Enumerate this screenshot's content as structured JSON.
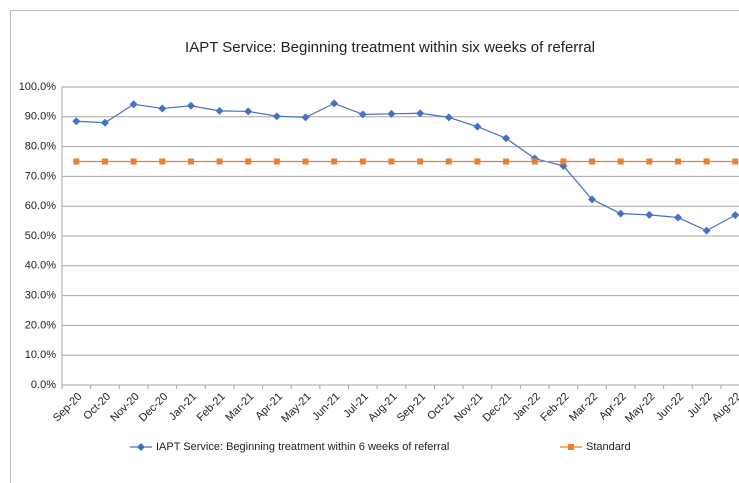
{
  "chart_data": {
    "type": "line",
    "title": "IAPT Service: Beginning treatment within six weeks of referral",
    "categories": [
      "Sep-20",
      "Oct-20",
      "Nov-20",
      "Dec-20",
      "Jan-21",
      "Feb-21",
      "Mar-21",
      "Apr-21",
      "May-21",
      "Jun-21",
      "Jul-21",
      "Aug-21",
      "Sep-21",
      "Oct-21",
      "Nov-21",
      "Dec-21",
      "Jan-22",
      "Feb-22",
      "Mar-22",
      "Apr-22",
      "May-22",
      "Jun-22",
      "Jul-22",
      "Aug-22"
    ],
    "series": [
      {
        "name": "IAPT Service: Beginning treatment within 6 weeks of referral",
        "color": "#4472c4",
        "marker": "diamond",
        "values": [
          88.5,
          88.0,
          94.2,
          92.8,
          93.7,
          92.0,
          91.8,
          90.2,
          89.8,
          94.5,
          90.8,
          91.0,
          91.2,
          89.8,
          86.7,
          82.8,
          76.0,
          73.5,
          62.3,
          57.5,
          57.1,
          56.2,
          51.8,
          57.0
        ]
      },
      {
        "name": "Standard",
        "color": "#ed7d31",
        "marker": "square",
        "values": [
          75,
          75,
          75,
          75,
          75,
          75,
          75,
          75,
          75,
          75,
          75,
          75,
          75,
          75,
          75,
          75,
          75,
          75,
          75,
          75,
          75,
          75,
          75,
          75
        ]
      }
    ],
    "ylim": [
      0,
      100
    ],
    "yticks": [
      {
        "value": 0,
        "label": "0.0%"
      },
      {
        "value": 10,
        "label": "10.0%"
      },
      {
        "value": 20,
        "label": "20.0%"
      },
      {
        "value": 30,
        "label": "30.0%"
      },
      {
        "value": 40,
        "label": "40.0%"
      },
      {
        "value": 50,
        "label": "50.0%"
      },
      {
        "value": 60,
        "label": "60.0%"
      },
      {
        "value": 70,
        "label": "70.0%"
      },
      {
        "value": 80,
        "label": "80.0%"
      },
      {
        "value": 90,
        "label": "90.0%"
      },
      {
        "value": 100,
        "label": "100.0%"
      }
    ],
    "grid": true
  }
}
